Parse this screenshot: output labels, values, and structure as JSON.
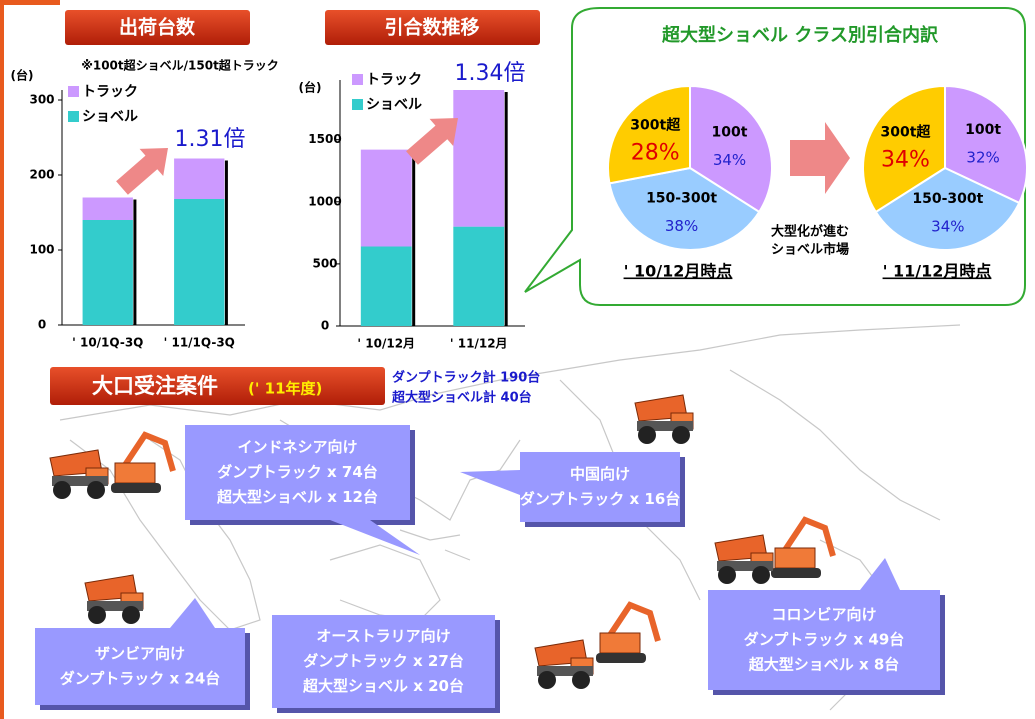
{
  "chart_data": [
    {
      "type": "bar",
      "stacked": true,
      "title": "出荷台数",
      "note": "※100t超ショベル/150t超トラック",
      "y_label": "(台)",
      "categories": [
        "' 10/1Q-3Q",
        "' 11/1Q-3Q"
      ],
      "series": [
        {
          "name": "ショベル",
          "color": "#33cccc",
          "values": [
            140,
            168
          ]
        },
        {
          "name": "トラック",
          "color": "#cc99ff",
          "values": [
            30,
            54
          ]
        }
      ],
      "ylim": [
        0,
        300
      ],
      "yticks": [
        0,
        100,
        200,
        300
      ],
      "annotation": "1.31倍"
    },
    {
      "type": "bar",
      "stacked": true,
      "title": "引合数推移",
      "y_label": "(台)",
      "categories": [
        "' 10/12月",
        "' 11/12月"
      ],
      "series": [
        {
          "name": "ショベル",
          "color": "#33cccc",
          "values": [
            640,
            800
          ]
        },
        {
          "name": "トラック",
          "color": "#cc99ff",
          "values": [
            780,
            1100
          ]
        }
      ],
      "ylim": [
        0,
        1900
      ],
      "yticks": [
        0,
        500,
        1000,
        1500
      ],
      "annotation": "1.34倍"
    },
    {
      "type": "pie",
      "title": "超大型ショベル クラス別引合内訳",
      "caption": "' 10/12月時点",
      "categories": [
        "100t",
        "150-300t",
        "300t超"
      ],
      "values": [
        34,
        38,
        28
      ],
      "value_labels": [
        "34%",
        "38%",
        "28%"
      ],
      "colors": [
        "#cc99ff",
        "#99ccff",
        "#ffcc00"
      ],
      "value_label_colors": [
        "#2222cc",
        "#2222cc",
        "#e00000"
      ]
    },
    {
      "type": "pie",
      "caption": "' 11/12月時点",
      "categories": [
        "100t",
        "150-300t",
        "300t超"
      ],
      "values": [
        32,
        34,
        34
      ],
      "value_labels": [
        "32%",
        "34%",
        "34%"
      ],
      "colors": [
        "#cc99ff",
        "#99ccff",
        "#ffcc00"
      ],
      "value_label_colors": [
        "#2222cc",
        "#2222cc",
        "#e00000"
      ]
    }
  ],
  "pie_note": [
    "大型化が進む",
    "ショベル市場"
  ],
  "orders": {
    "title": "大口受注案件",
    "subtitle": "(' 11年度)",
    "totals": [
      "ダンプトラック計 190台",
      "超大型ショベル計 40台"
    ],
    "items": [
      {
        "region": "インドネシア向け",
        "lines": [
          "ダンプトラック x 74台",
          "超大型ショベル x 12台"
        ]
      },
      {
        "region": "中国向け",
        "lines": [
          "ダンプトラック x 16台"
        ]
      },
      {
        "region": "ザンビア向け",
        "lines": [
          "ダンプトラック x 24台"
        ]
      },
      {
        "region": "オーストラリア向け",
        "lines": [
          "ダンプトラック x 27台",
          "超大型ショベル x 20台"
        ]
      },
      {
        "region": "コロンビア向け",
        "lines": [
          "ダンプトラック x 49台",
          "超大型ショベル x 8台"
        ]
      }
    ]
  }
}
